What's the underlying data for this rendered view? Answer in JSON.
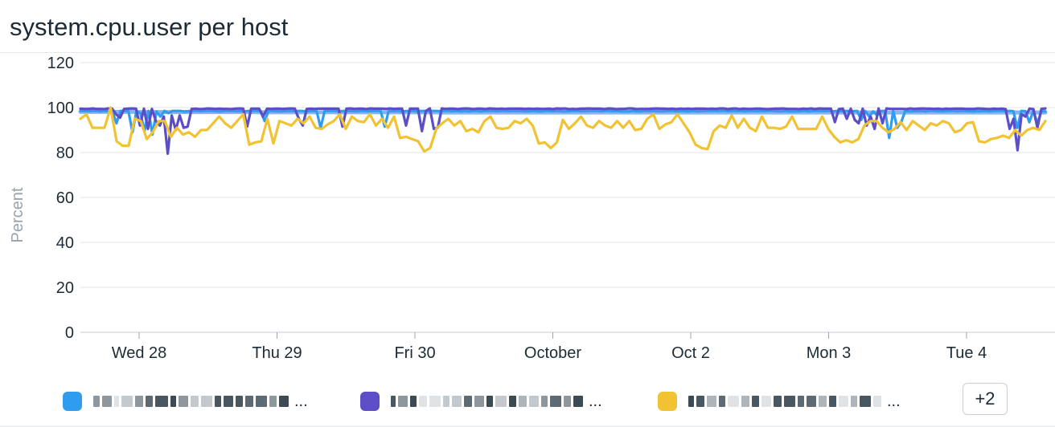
{
  "widget": {
    "title": "system.cpu.user per host"
  },
  "chart_data": {
    "type": "line",
    "title": "system.cpu.user per host",
    "ylabel": "Percent",
    "xlabel": "",
    "ylim": [
      0,
      120
    ],
    "yticks": [
      0,
      20,
      40,
      60,
      80,
      100,
      120
    ],
    "xticks": [
      "Wed 28",
      "Thu 29",
      "Fri 30",
      "October",
      "Oct 2",
      "Mon 3",
      "Tue 4"
    ],
    "grid": true,
    "legend_position": "bottom",
    "series": [
      {
        "color": "#6fa8ef",
        "values": [
          98.1,
          98.1,
          98.1,
          98.1,
          98.1,
          98.1,
          98.1,
          98.1,
          98.1,
          98.1,
          98.1,
          98.1,
          98.1,
          98.1,
          98.1,
          98.1,
          98.0,
          98.0,
          98.0,
          98.0,
          98.0,
          98.0,
          98.0,
          98.0,
          98.0,
          98.0,
          98.0,
          98.0,
          98.0,
          98.0,
          98.0,
          98.0,
          98.0,
          98.0,
          98.0,
          98.0,
          98.0,
          98.0,
          98.0,
          98.0,
          98.0,
          98.0,
          98.0,
          98.0,
          98.0,
          98.0,
          98.0,
          98.0,
          97.9,
          97.9,
          97.9,
          97.9,
          97.9,
          97.9,
          97.9,
          97.9,
          97.9,
          97.9,
          97.9,
          97.9,
          97.9,
          97.9,
          97.9,
          97.9,
          97.9,
          97.9,
          97.9,
          97.9,
          97.9,
          97.9,
          97.9,
          97.9,
          97.9,
          97.9,
          97.9,
          97.9,
          97.9,
          97.9,
          97.9,
          97.9,
          97.9,
          97.9,
          97.9,
          97.9,
          97.9,
          97.9,
          97.9,
          97.9,
          97.9,
          97.9,
          97.9,
          97.9,
          97.9,
          97.9,
          97.9,
          97.9,
          97.9,
          97.8,
          97.8,
          97.8,
          97.8,
          97.8,
          97.8,
          97.8,
          97.8,
          97.8,
          97.8,
          97.8,
          97.8,
          97.8,
          97.8,
          97.8,
          97.8,
          97.8,
          97.8,
          97.8,
          97.8,
          97.8,
          97.8,
          97.8,
          97.8,
          97.8,
          97.8,
          97.8,
          97.8,
          97.8,
          97.8,
          97.8,
          97.8,
          97.8,
          97.8,
          97.8,
          97.8,
          97.8,
          97.8,
          97.8,
          97.8,
          97.8,
          97.8,
          97.8,
          97.8,
          97.8,
          97.8,
          97.8,
          97.8,
          97.8,
          97.8,
          97.8,
          97.8,
          97.8,
          97.8,
          97.8,
          97.8,
          97.8,
          97.8,
          97.8,
          97.8,
          97.8,
          97.8,
          97.8,
          97.8,
          97.8,
          97.8,
          97.8,
          97.8,
          97.8,
          97.8,
          97.8,
          97.8,
          97.8,
          97.8,
          97.8,
          97.8,
          97.8,
          97.8,
          97.8,
          97.8,
          97.8,
          97.8,
          97.8,
          97.8,
          97.8,
          97.8,
          97.8,
          97.8,
          97.8,
          97.8,
          97.8,
          97.8,
          97.8,
          97.8,
          97.8,
          97.8,
          97.8,
          97.8,
          97.8,
          97.8,
          97.8,
          97.8,
          97.8,
          97.8,
          97.8,
          97.8,
          97.8,
          97.8,
          97.8,
          97.8,
          97.8,
          97.8,
          97.8,
          97.8,
          97.8,
          97.8,
          97.8,
          97.8,
          97.8,
          97.8,
          97.8,
          97.8,
          97.8,
          97.8,
          97.8,
          97.8,
          97.8,
          97.8,
          97.8,
          97.8,
          97.8,
          97.8,
          97.8,
          97.8,
          97.8,
          97.8,
          97.8,
          97.8,
          97.8,
          97.8,
          97.8,
          97.8,
          97.8,
          97.8,
          97.8,
          97.8,
          97.8,
          97.8,
          97.8,
          97.8,
          97.8,
          97.8,
          97.8,
          97.8,
          97.8,
          97.8,
          97.8,
          97.8,
          97.8,
          97.8,
          97.8,
          97.8,
          97.8,
          97.8,
          97.8
        ]
      },
      {
        "color": "#2f9cf0",
        "values": [
          98.5,
          98.5,
          98.4,
          98.5,
          98.5,
          98.3,
          98.5,
          98.4,
          98.4,
          93.0,
          98.5,
          98.5,
          98.4,
          89.0,
          98.4,
          97.5,
          89.5,
          98.5,
          88.0,
          98.2,
          96.0,
          98.5,
          97.5,
          98.5,
          98.5,
          98.5,
          98.2,
          98.4,
          98.5,
          98.5,
          98.4,
          98.5,
          98.5,
          98.5,
          98.4,
          98.3,
          98.5,
          98.5,
          98.5,
          98.4,
          98.5,
          98.3,
          98.5,
          98.5,
          98.5,
          98.4,
          94.0,
          98.5,
          98.5,
          98.4,
          98.3,
          98.4,
          98.5,
          98.4,
          98.5,
          98.5,
          98.4,
          98.4,
          98.5,
          98.4,
          91.0,
          98.5,
          98.5,
          98.5,
          98.5,
          98.4,
          98.5,
          98.5,
          98.4,
          98.3,
          98.5,
          98.5,
          98.4,
          98.5,
          98.5,
          98.5,
          91.5,
          98.5,
          98.4,
          98.5,
          98.3,
          98.4,
          98.5,
          98.5,
          98.3,
          98.5,
          98.5,
          98.4,
          98.5,
          98.5,
          98.4,
          98.5,
          98.5,
          98.4,
          98.5,
          98.3,
          98.5,
          98.3,
          98.5,
          98.5,
          98.3,
          98.5,
          98.5,
          98.5,
          98.4,
          98.5,
          98.5,
          98.4,
          98.5,
          98.4,
          98.5,
          98.3,
          98.4,
          98.5,
          98.4,
          98.3,
          98.5,
          98.5,
          98.4,
          98.5,
          98.4,
          98.3,
          98.4,
          98.5,
          98.5,
          98.4,
          98.4,
          98.5,
          98.5,
          98.5,
          98.4,
          98.5,
          98.5,
          98.4,
          98.5,
          98.3,
          98.3,
          98.3,
          98.5,
          98.3,
          98.3,
          98.5,
          98.4,
          98.5,
          98.4,
          98.3,
          98.4,
          98.5,
          98.5,
          98.3,
          98.5,
          98.4,
          98.3,
          98.5,
          98.3,
          98.4,
          98.5,
          98.5,
          98.5,
          98.5,
          98.5,
          98.5,
          98.4,
          98.5,
          98.4,
          98.5,
          98.3,
          98.5,
          98.5,
          98.4,
          98.5,
          98.4,
          98.5,
          98.5,
          98.4,
          98.3,
          98.5,
          98.3,
          98.3,
          98.3,
          98.4,
          98.5,
          98.3,
          98.5,
          98.5,
          98.5,
          98.4,
          98.5,
          98.3,
          98.5,
          98.4,
          98.5,
          98.5,
          98.4,
          98.5,
          94.5,
          98.5,
          96.0,
          98.3,
          96.5,
          98.5,
          98.5,
          86.5,
          98.5,
          91.0,
          93.5,
          98.5,
          98.3,
          98.4,
          98.4,
          98.5,
          98.3,
          98.5,
          98.5,
          98.4,
          98.3,
          98.4,
          98.5,
          98.5,
          98.4,
          98.5,
          98.5,
          98.4,
          98.3,
          98.4,
          98.4,
          98.5,
          98.3,
          98.5,
          98.5,
          98.5,
          98.5,
          98.5,
          98.4,
          91.0,
          98.5,
          98.4,
          93.5,
          98.5,
          93.0,
          98.3,
          98.3
        ]
      },
      {
        "color": "#5b4ec7",
        "values": [
          99.5,
          99.4,
          99.4,
          99.6,
          99.4,
          99.4,
          99.3,
          99.6,
          99.5,
          97.0,
          95.5,
          99.4,
          99.5,
          99.6,
          99.5,
          92.0,
          99.5,
          90.5,
          99.4,
          94.0,
          92.0,
          96.0,
          79.5,
          96.5,
          90.0,
          96.5,
          91.0,
          91.5,
          99.4,
          99.5,
          99.3,
          99.4,
          99.6,
          99.5,
          99.4,
          99.5,
          99.4,
          99.4,
          99.3,
          99.5,
          99.6,
          99.5,
          91.5,
          99.5,
          99.5,
          99.5,
          96.0,
          99.5,
          99.4,
          99.5,
          99.5,
          99.4,
          99.5,
          99.6,
          99.5,
          95.0,
          92.0,
          99.4,
          99.5,
          99.4,
          99.5,
          99.5,
          99.5,
          99.5,
          99.5,
          99.5,
          91.5,
          99.5,
          99.6,
          99.4,
          99.5,
          99.5,
          99.3,
          99.6,
          99.5,
          99.5,
          99.5,
          99.4,
          99.6,
          99.4,
          99.5,
          99.5,
          92.0,
          99.5,
          99.5,
          99.5,
          89.5,
          98.5,
          99.6,
          90.5,
          91.0,
          99.6,
          99.4,
          99.5,
          99.5,
          99.3,
          99.5,
          99.6,
          99.5,
          99.3,
          99.5,
          99.5,
          99.3,
          99.6,
          99.5,
          99.4,
          99.5,
          99.4,
          99.5,
          99.5,
          99.5,
          99.5,
          99.4,
          99.5,
          99.4,
          99.5,
          99.4,
          99.4,
          99.5,
          99.3,
          99.6,
          99.5,
          99.6,
          99.3,
          99.4,
          99.3,
          99.5,
          99.5,
          99.6,
          99.5,
          99.5,
          99.5,
          99.3,
          99.6,
          99.5,
          99.3,
          99.4,
          99.4,
          99.6,
          99.6,
          99.3,
          99.4,
          99.4,
          99.4,
          99.5,
          99.6,
          99.5,
          99.5,
          99.4,
          99.5,
          99.3,
          99.5,
          99.4,
          99.5,
          99.4,
          99.5,
          99.5,
          99.5,
          99.4,
          99.5,
          99.4,
          99.6,
          99.6,
          99.3,
          99.5,
          99.6,
          99.3,
          99.5,
          99.4,
          99.4,
          99.5,
          99.5,
          99.4,
          99.3,
          99.4,
          99.5,
          99.5,
          99.6,
          99.4,
          99.4,
          99.4,
          99.3,
          99.5,
          99.4,
          99.6,
          99.3,
          99.6,
          99.5,
          99.5,
          99.5,
          93.5,
          99.3,
          99.5,
          95.0,
          99.5,
          94.5,
          93.0,
          99.5,
          92.0,
          96.0,
          90.5,
          99.6,
          93.0,
          99.6,
          99.4,
          99.4,
          99.4,
          99.4,
          99.3,
          99.6,
          99.4,
          99.5,
          99.6,
          99.5,
          99.5,
          99.4,
          99.5,
          99.3,
          99.5,
          99.4,
          99.5,
          99.5,
          99.5,
          99.4,
          99.4,
          99.4,
          99.6,
          99.5,
          99.4,
          99.3,
          99.5,
          99.4,
          99.5,
          99.3,
          90.5,
          95.0,
          81.0,
          97.0,
          96.0,
          99.5,
          99.3,
          91.0,
          99.4,
          99.6
        ]
      },
      {
        "color": "#f1c232",
        "values": [
          95.0,
          97.0,
          91.0,
          91.0,
          91.0,
          100.0,
          85.0,
          83.0,
          83.0,
          95.0,
          94.0,
          86.0,
          89.0,
          94.0,
          94.0,
          87.0,
          91.0,
          88.0,
          89.0,
          87.0,
          90.0,
          90.0,
          93.0,
          96.0,
          93.0,
          91.0,
          94.0,
          97.0,
          83.5,
          84.5,
          85.0,
          95.0,
          84.0,
          94.0,
          93.0,
          92.0,
          95.0,
          93.0,
          96.0,
          91.0,
          90.5,
          92.5,
          94.0,
          97.0,
          90.5,
          96.0,
          94.0,
          93.5,
          97.0,
          92.0,
          95.0,
          91.0,
          96.0,
          86.5,
          87.0,
          86.0,
          85.0,
          80.5,
          82.0,
          90.5,
          93.0,
          95.0,
          92.0,
          94.0,
          89.5,
          90.5,
          89.0,
          94.0,
          96.0,
          91.0,
          90.5,
          91.0,
          94.0,
          93.0,
          95.0,
          92.0,
          84.0,
          84.5,
          82.0,
          84.5,
          94.5,
          90.5,
          93.0,
          96.0,
          92.0,
          91.0,
          94.0,
          92.0,
          91.0,
          94.0,
          91.0,
          94.0,
          90.0,
          90.5,
          95.0,
          97.0,
          90.5,
          92.5,
          93.5,
          97.0,
          93.0,
          89.0,
          83.5,
          82.0,
          81.5,
          89.5,
          92.0,
          91.0,
          96.5,
          91.0,
          95.0,
          91.0,
          89.5,
          96.0,
          91.0,
          91.0,
          90.5,
          91.5,
          96.0,
          90.5,
          90.5,
          90.5,
          90.5,
          96.0,
          90.5,
          87.0,
          84.5,
          85.5,
          84.5,
          86.0,
          92.0,
          94.0,
          94.0,
          91.0,
          89.0,
          90.5,
          93.5,
          90.0,
          94.0,
          92.0,
          90.0,
          93.0,
          92.0,
          94.0,
          93.0,
          89.0,
          90.0,
          93.0,
          93.5,
          85.0,
          84.5,
          86.0,
          86.5,
          87.5,
          86.5,
          90.0,
          87.5,
          90.0,
          91.0,
          90.0,
          94.0
        ]
      }
    ]
  },
  "legend": {
    "items": [
      {
        "color": "#2f9cf0",
        "ellipsis": "..."
      },
      {
        "color": "#5b4ec7",
        "ellipsis": "..."
      },
      {
        "color": "#f1c232",
        "ellipsis": "..."
      }
    ],
    "more_label": "+2"
  }
}
